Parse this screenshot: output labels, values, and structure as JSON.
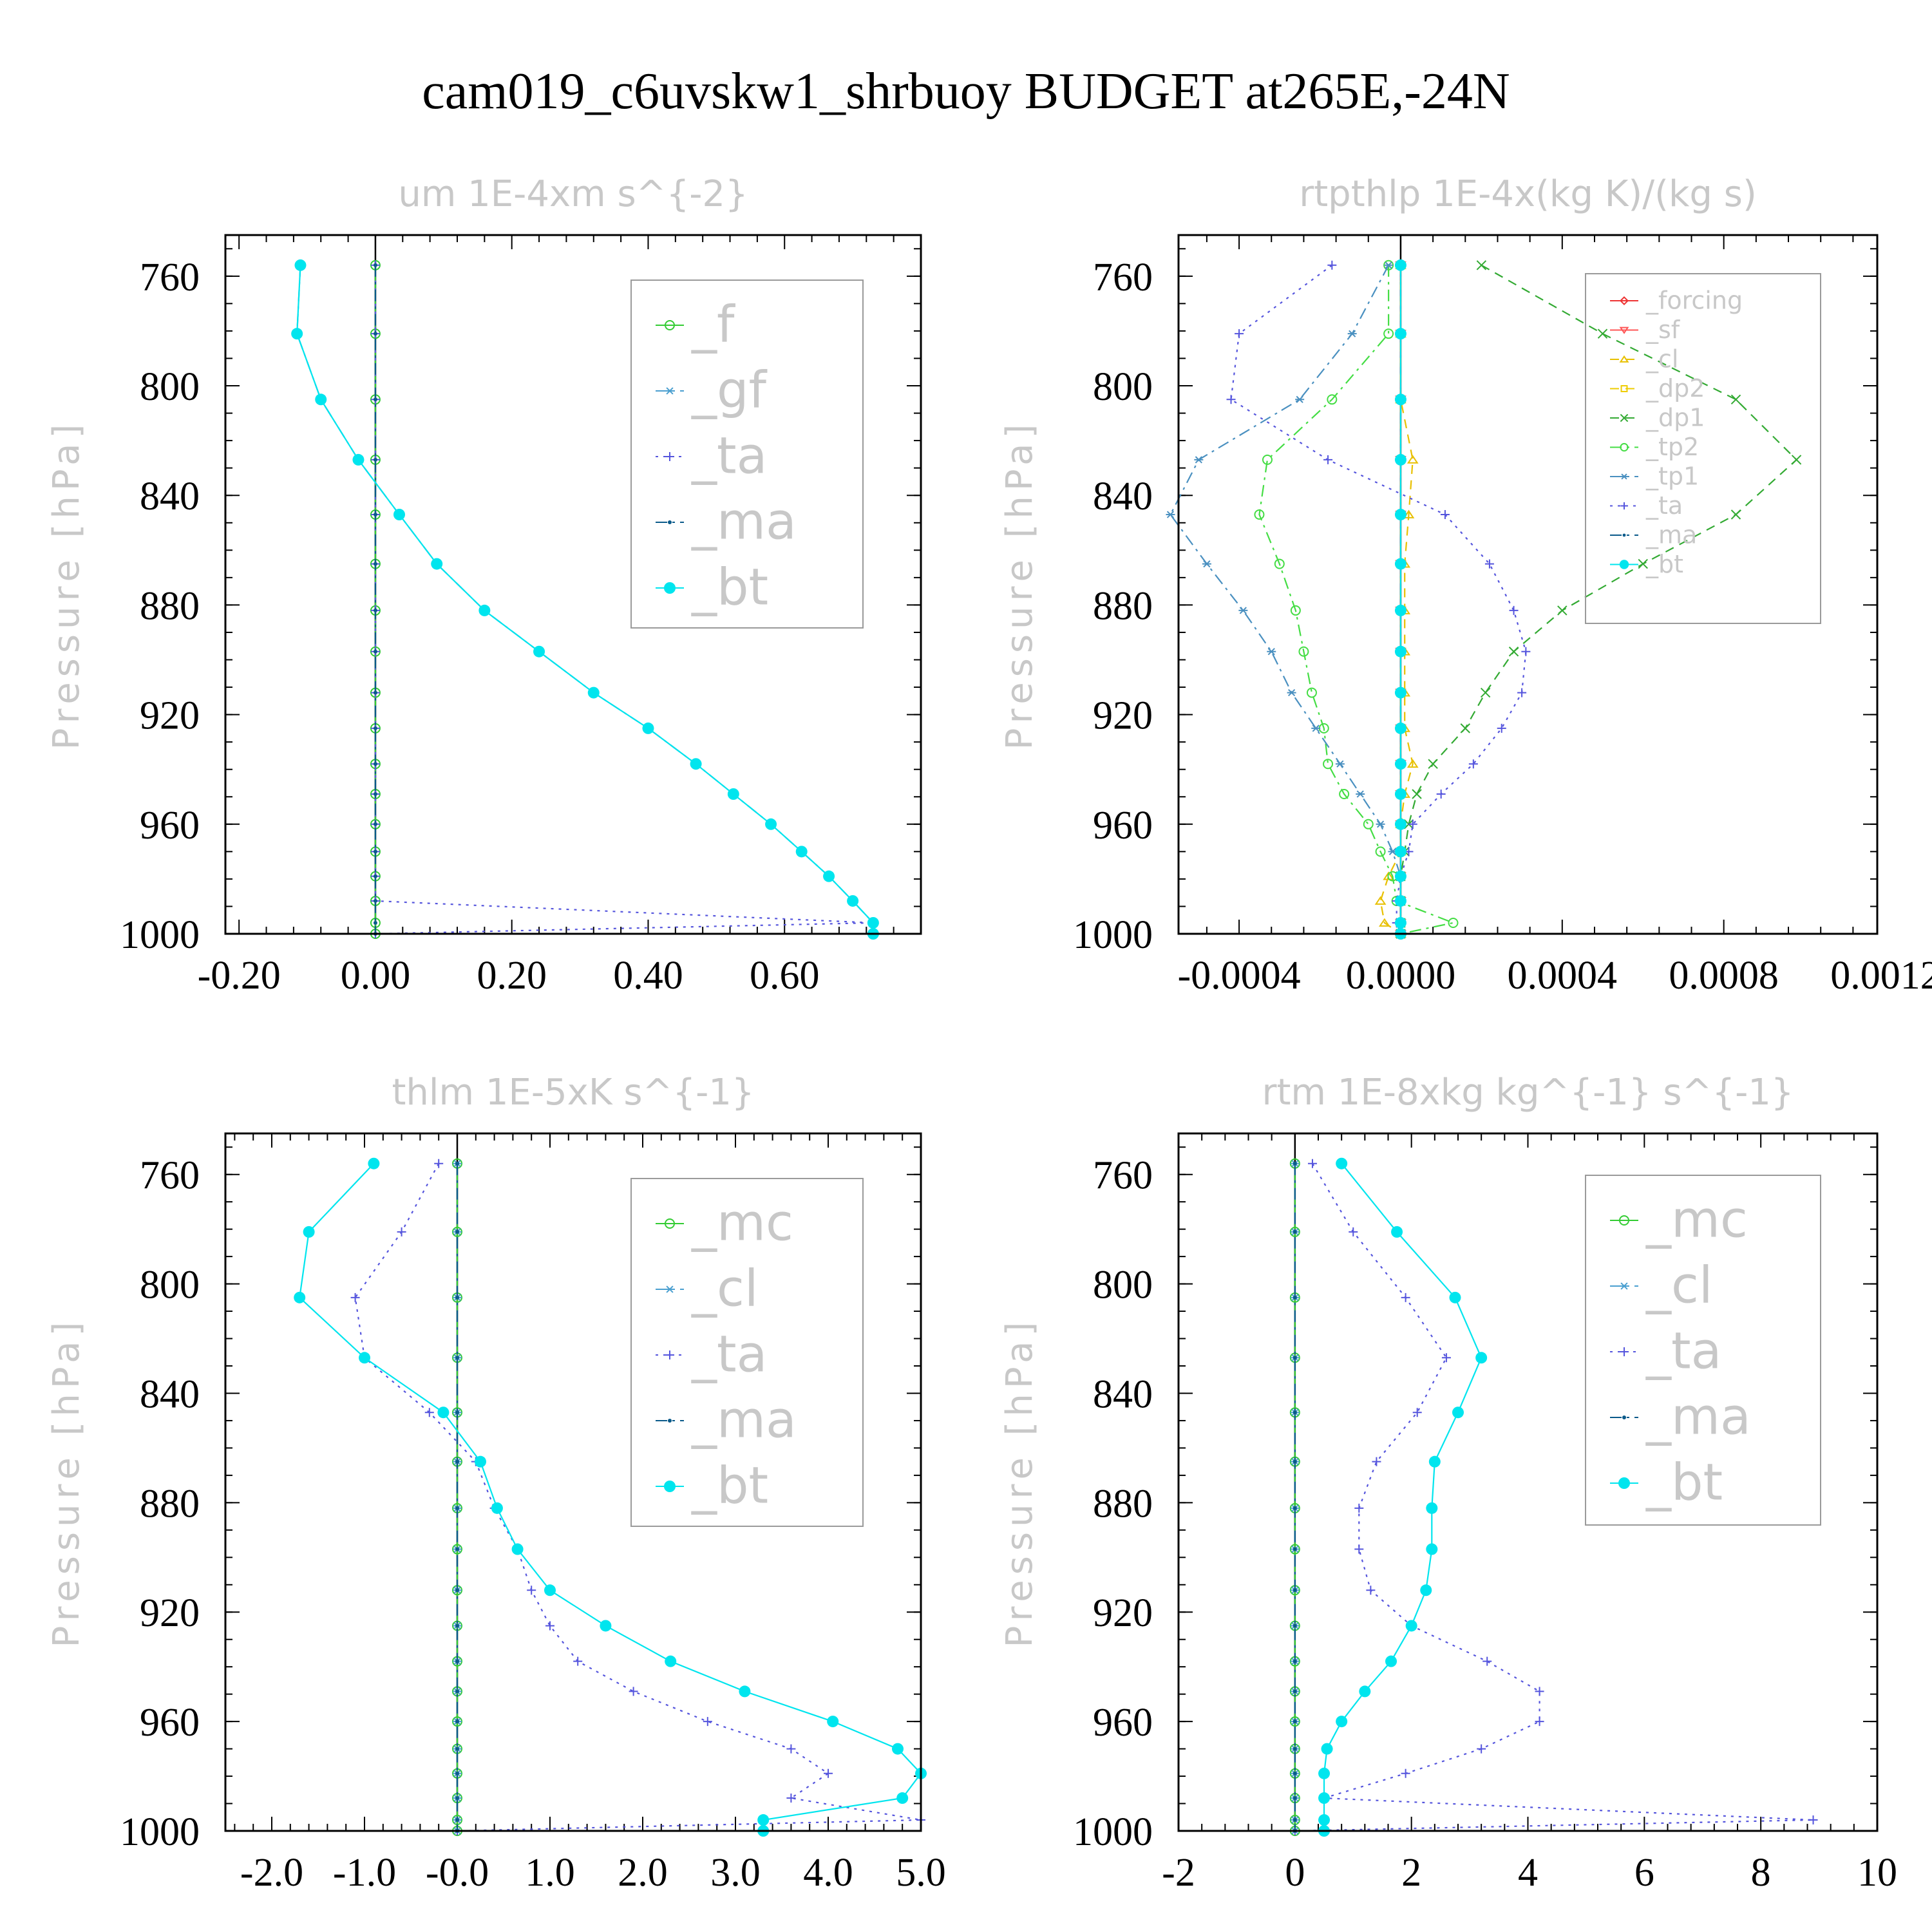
{
  "figure": {
    "title": "cam019_c6uvskw1_shrbuoy  BUDGET at265E,-24N"
  },
  "chart_data": [
    {
      "type": "line",
      "title": "um   1E-4xm s^{-2}",
      "ylabel": "Pressure [hPa]",
      "y_inverted": true,
      "ylim": [
        1000,
        745
      ],
      "xlim": [
        -0.22,
        0.8
      ],
      "xticks": [
        "-0.20",
        "0.00",
        "0.20",
        "0.40",
        "0.60"
      ],
      "xtick_values": [
        -0.2,
        0.0,
        0.2,
        0.4,
        0.6
      ],
      "yticks": [
        "760",
        "800",
        "840",
        "880",
        "920",
        "960",
        "1000"
      ],
      "ytick_values": [
        760,
        800,
        840,
        880,
        920,
        960,
        1000
      ],
      "legend_position": "top-right",
      "legend_font_size": 78,
      "levels": [
        756,
        781,
        805,
        827,
        847,
        865,
        882,
        897,
        912,
        925,
        938,
        949,
        960,
        970,
        979,
        988,
        996,
        1000
      ],
      "series": [
        {
          "name": "_f",
          "marker": "circle-open",
          "color": "#33cc33",
          "dash": "none",
          "values": [
            0,
            0,
            0,
            0,
            0,
            0,
            0,
            0,
            0,
            0,
            0,
            0,
            0,
            0,
            0,
            0,
            0,
            0
          ]
        },
        {
          "name": "_gf",
          "marker": "star",
          "color": "#4a9fd0",
          "dash": "dashdot",
          "values": [
            -0.11,
            -0.115,
            -0.08,
            -0.025,
            0.035,
            0.09,
            0.16,
            0.24,
            0.32,
            0.4,
            0.47,
            0.525,
            0.58,
            0.625,
            0.665,
            0.7,
            0.73,
            0.73
          ]
        },
        {
          "name": "_ta",
          "marker": "plus",
          "color": "#5555dd",
          "dash": "dot",
          "values": [
            0,
            0,
            0,
            0,
            0,
            0,
            0,
            0,
            0,
            0,
            0,
            0,
            0,
            0,
            0,
            0,
            0.73,
            0
          ]
        },
        {
          "name": "_ma",
          "marker": "dot",
          "color": "#0a5a8a",
          "dash": "dashdot",
          "values": [
            0,
            0,
            0,
            0,
            0,
            0,
            0,
            0,
            0,
            0,
            0,
            0,
            0,
            0,
            0,
            0,
            0,
            0
          ]
        },
        {
          "name": "_bt",
          "marker": "circle-filled",
          "color": "#00e5ee",
          "dash": "none",
          "values": [
            -0.11,
            -0.115,
            -0.08,
            -0.025,
            0.035,
            0.09,
            0.16,
            0.24,
            0.32,
            0.4,
            0.47,
            0.525,
            0.58,
            0.625,
            0.665,
            0.7,
            0.73,
            0.73
          ]
        }
      ]
    },
    {
      "type": "line",
      "title": "rtpthlp   1E-4x(kg K)/(kg s)",
      "ylabel": "Pressure [hPa]",
      "y_inverted": true,
      "ylim": [
        1000,
        745
      ],
      "xlim": [
        -0.00055,
        0.00118
      ],
      "xticks": [
        "-0.0004",
        "0.0000",
        "0.0004",
        "0.0008",
        "0.0012"
      ],
      "xtick_values": [
        -0.0004,
        0.0,
        0.0004,
        0.0008,
        0.0012
      ],
      "yticks": [
        "760",
        "800",
        "840",
        "880",
        "920",
        "960",
        "1000"
      ],
      "ytick_values": [
        760,
        800,
        840,
        880,
        920,
        960,
        1000
      ],
      "legend_position": "top-right",
      "legend_font_size": 38,
      "levels": [
        756,
        781,
        805,
        827,
        847,
        865,
        882,
        897,
        912,
        925,
        938,
        949,
        960,
        970,
        979,
        988,
        996,
        1000
      ],
      "series": [
        {
          "name": "_forcing",
          "marker": "diamond-open",
          "color": "#ee3333",
          "dash": "none",
          "values": [
            0,
            0,
            0,
            0,
            0,
            0,
            0,
            0,
            0,
            0,
            0,
            0,
            0,
            0,
            0,
            0,
            0,
            0
          ]
        },
        {
          "name": "_sf",
          "marker": "triangle-down",
          "color": "#ff5555",
          "dash": "none",
          "values": [
            0,
            0,
            0,
            0,
            0,
            0,
            0,
            0,
            0,
            0,
            0,
            0,
            0,
            0,
            0,
            0,
            0,
            0
          ]
        },
        {
          "name": "_cl",
          "marker": "triangle-up",
          "color": "#e8c000",
          "dash": "dash",
          "values": [
            0,
            0,
            0,
            3e-05,
            2e-05,
            1e-05,
            1e-05,
            1e-05,
            1e-05,
            1e-05,
            3e-05,
            1e-05,
            0,
            0,
            -3e-05,
            -5e-05,
            -4e-05,
            0
          ]
        },
        {
          "name": "_dp2",
          "marker": "square-open",
          "color": "#eecc00",
          "dash": "dash",
          "values": [
            0,
            0,
            0,
            0,
            0,
            0,
            0,
            0,
            0,
            0,
            0,
            0,
            0,
            0,
            0,
            0,
            0,
            0
          ]
        },
        {
          "name": "_dp1",
          "marker": "x",
          "color": "#33aa33",
          "dash": "dash",
          "values": [
            0.0002,
            0.0005,
            0.00083,
            0.00098,
            0.00083,
            0.0006,
            0.0004,
            0.00028,
            0.00021,
            0.00016,
            8e-05,
            4e-05,
            2e-05,
            1e-05,
            0,
            0,
            0,
            0
          ]
        },
        {
          "name": "_tp2",
          "marker": "circle-open",
          "color": "#44dd44",
          "dash": "dashdot",
          "values": [
            -3e-05,
            -3e-05,
            -0.00017,
            -0.00033,
            -0.00035,
            -0.0003,
            -0.00026,
            -0.00024,
            -0.00022,
            -0.00019,
            -0.00018,
            -0.00014,
            -8e-05,
            -5e-05,
            -2e-05,
            -1e-05,
            0.00013,
            0
          ]
        },
        {
          "name": "_tp1",
          "marker": "star",
          "color": "#4a90c0",
          "dash": "dashdot",
          "values": [
            -3e-05,
            -0.00012,
            -0.00025,
            -0.0005,
            -0.00057,
            -0.00048,
            -0.00039,
            -0.00032,
            -0.00027,
            -0.00021,
            -0.00015,
            -0.0001,
            -5e-05,
            -2e-05,
            0,
            0,
            0,
            0
          ]
        },
        {
          "name": "_ta",
          "marker": "plus",
          "color": "#5555dd",
          "dash": "dot",
          "values": [
            -0.00017,
            -0.0004,
            -0.00042,
            -0.00018,
            0.00011,
            0.00022,
            0.00028,
            0.00031,
            0.0003,
            0.00025,
            0.00018,
            0.0001,
            3e-05,
            2e-05,
            0,
            -1e-05,
            -1e-05,
            0
          ]
        },
        {
          "name": "_ma",
          "marker": "dot",
          "color": "#0a5a8a",
          "dash": "dashdot",
          "values": [
            0,
            0,
            0,
            0,
            0,
            0,
            0,
            0,
            0,
            0,
            0,
            0,
            0,
            0,
            0,
            0,
            0,
            0
          ]
        },
        {
          "name": "_bt",
          "marker": "circle-filled",
          "color": "#00e5ee",
          "dash": "none",
          "values": [
            0,
            0,
            0,
            0,
            0,
            0,
            0,
            0,
            0,
            0,
            0,
            0,
            0,
            0,
            0,
            0,
            0,
            0
          ]
        }
      ]
    },
    {
      "type": "line",
      "title": "thlm   1E-5xK s^{-1}",
      "ylabel": "Pressure [hPa]",
      "y_inverted": true,
      "ylim": [
        1000,
        745
      ],
      "xlim": [
        -2.5,
        5.0
      ],
      "xticks": [
        "-2.0",
        "-1.0",
        "-0.0",
        "1.0",
        "2.0",
        "3.0",
        "4.0",
        "5.0"
      ],
      "xtick_values": [
        -2,
        -1,
        0,
        1,
        2,
        3,
        4,
        5
      ],
      "yticks": [
        "760",
        "800",
        "840",
        "880",
        "920",
        "960",
        "1000"
      ],
      "ytick_values": [
        760,
        800,
        840,
        880,
        920,
        960,
        1000
      ],
      "legend_position": "top-right",
      "legend_font_size": 78,
      "levels": [
        756,
        781,
        805,
        827,
        847,
        865,
        882,
        897,
        912,
        925,
        938,
        949,
        960,
        970,
        979,
        988,
        996,
        1000
      ],
      "series": [
        {
          "name": "_mc",
          "marker": "circle-open",
          "color": "#33cc33",
          "dash": "none",
          "values": [
            0,
            0,
            0,
            0,
            0,
            0,
            0,
            0,
            0,
            0,
            0,
            0,
            0,
            0,
            0,
            0,
            0,
            0
          ]
        },
        {
          "name": "_cl",
          "marker": "star",
          "color": "#4a9fd0",
          "dash": "dashdot",
          "values": [
            0,
            0,
            0,
            0,
            0,
            0,
            0,
            0,
            0,
            0,
            0,
            0,
            0,
            0,
            0,
            0,
            0,
            0
          ]
        },
        {
          "name": "_ta",
          "marker": "plus",
          "color": "#5555dd",
          "dash": "dot",
          "values": [
            -0.2,
            -0.6,
            -1.1,
            -1.0,
            -0.3,
            0.2,
            0.4,
            0.65,
            0.8,
            1.0,
            1.3,
            1.9,
            2.7,
            3.6,
            4.0,
            3.6,
            5.0,
            0
          ]
        },
        {
          "name": "_ma",
          "marker": "dot",
          "color": "#0a5a8a",
          "dash": "dashdot",
          "values": [
            0,
            0,
            0,
            0,
            0,
            0,
            0,
            0,
            0,
            0,
            0,
            0,
            0,
            0,
            0,
            0,
            0,
            0
          ]
        },
        {
          "name": "_bt",
          "marker": "circle-filled",
          "color": "#00e5ee",
          "dash": "none",
          "values": [
            -0.9,
            -1.6,
            -1.7,
            -1.0,
            -0.15,
            0.25,
            0.43,
            0.65,
            1.0,
            1.6,
            2.3,
            3.1,
            4.05,
            4.75,
            5.0,
            4.8,
            3.3,
            3.3
          ]
        }
      ]
    },
    {
      "type": "line",
      "title": "rtm   1E-8xkg kg^{-1} s^{-1}",
      "ylabel": "Pressure [hPa]",
      "y_inverted": true,
      "ylim": [
        1000,
        745
      ],
      "xlim": [
        -2,
        10
      ],
      "xticks": [
        "-2",
        "0",
        "2",
        "4",
        "6",
        "8",
        "10"
      ],
      "xtick_values": [
        -2,
        0,
        2,
        4,
        6,
        8,
        10
      ],
      "yticks": [
        "760",
        "800",
        "840",
        "880",
        "920",
        "960",
        "1000"
      ],
      "ytick_values": [
        760,
        800,
        840,
        880,
        920,
        960,
        1000
      ],
      "legend_position": "top-right",
      "legend_font_size": 78,
      "levels": [
        756,
        781,
        805,
        827,
        847,
        865,
        882,
        897,
        912,
        925,
        938,
        949,
        960,
        970,
        979,
        988,
        996,
        1000
      ],
      "series": [
        {
          "name": "_mc",
          "marker": "circle-open",
          "color": "#33cc33",
          "dash": "none",
          "values": [
            0,
            0,
            0,
            0,
            0,
            0,
            0,
            0,
            0,
            0,
            0,
            0,
            0,
            0,
            0,
            0,
            0,
            0
          ]
        },
        {
          "name": "_cl",
          "marker": "star",
          "color": "#4a9fd0",
          "dash": "dashdot",
          "values": [
            0,
            0,
            0,
            0,
            0,
            0,
            0,
            0,
            0,
            0,
            0,
            0,
            0,
            0,
            0,
            0,
            0,
            0
          ]
        },
        {
          "name": "_ta",
          "marker": "plus",
          "color": "#5555dd",
          "dash": "dot",
          "values": [
            0.3,
            1.0,
            1.9,
            2.6,
            2.1,
            1.4,
            1.1,
            1.1,
            1.3,
            2.0,
            3.3,
            4.2,
            4.2,
            3.2,
            1.9,
            0.5,
            8.9,
            0
          ]
        },
        {
          "name": "_ma",
          "marker": "dot",
          "color": "#0a5a8a",
          "dash": "dashdot",
          "values": [
            0,
            0,
            0,
            0,
            0,
            0,
            0,
            0,
            0,
            0,
            0,
            0,
            0,
            0,
            0,
            0,
            0,
            0
          ]
        },
        {
          "name": "_bt",
          "marker": "circle-filled",
          "color": "#00e5ee",
          "dash": "none",
          "values": [
            0.8,
            1.75,
            2.75,
            3.2,
            2.8,
            2.4,
            2.35,
            2.35,
            2.25,
            2.0,
            1.65,
            1.2,
            0.8,
            0.55,
            0.5,
            0.5,
            0.5,
            0.5
          ]
        }
      ]
    }
  ]
}
